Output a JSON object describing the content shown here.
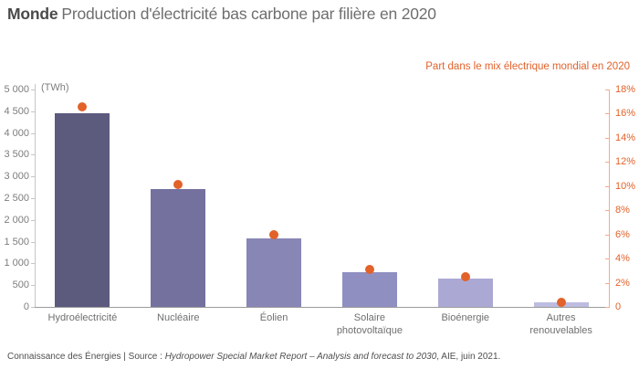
{
  "title": {
    "brand": "Monde",
    "rest": "Production d'électricité bas carbone par filière en 2020"
  },
  "chart_data": {
    "type": "bar",
    "categories": [
      "Hydroélectricité",
      "Nucléaire",
      "Éolien",
      "Solaire\nphotovoltaïque",
      "Bioénergie",
      "Autres\nrenouvelables"
    ],
    "series": [
      {
        "name": "Production d'électricité bas carbone (TWh)",
        "type": "bar",
        "values": [
          4450,
          2700,
          1580,
          800,
          650,
          110
        ],
        "bar_colors": [
          "#5c5a7d",
          "#74719f",
          "#8886b5",
          "#908fc2",
          "#aba9d4",
          "#bdbce0"
        ]
      },
      {
        "name": "Part dans le mix électrique mondial en 2020",
        "type": "scatter",
        "values": [
          16.6,
          10.1,
          6.0,
          3.1,
          2.5,
          0.4
        ],
        "color": "#e2622a"
      }
    ],
    "left_axis": {
      "unit_label": "(TWh)",
      "min": 0,
      "max": 5000,
      "step": 500,
      "ticks": [
        "5 000",
        "4 500",
        "4 000",
        "3 500",
        "3 000",
        "2 500",
        "2 000",
        "1 500",
        "1 000",
        "500",
        "0"
      ],
      "line_color": "#c6c6c6",
      "text_color": "#7d7d7d"
    },
    "right_axis": {
      "label": "Part dans le mix électrique mondial en 2020",
      "min": 0,
      "max": 18,
      "step": 2,
      "ticks": [
        "18%",
        "16%",
        "14%",
        "12%",
        "10%",
        "8%",
        "6%",
        "4%",
        "2%",
        "0"
      ],
      "line_color": "#f3ab8d",
      "text_color": "#e2622a"
    },
    "baseline_color": "#9b9b9b",
    "legend_position": "none",
    "grid": false
  },
  "footer": {
    "prefix": "Connaissance des Énergies | Source : ",
    "source_italic": "Hydropower Special Market Report – Analysis and forecast to 2030",
    "suffix": ", AIE, juin 2021."
  }
}
